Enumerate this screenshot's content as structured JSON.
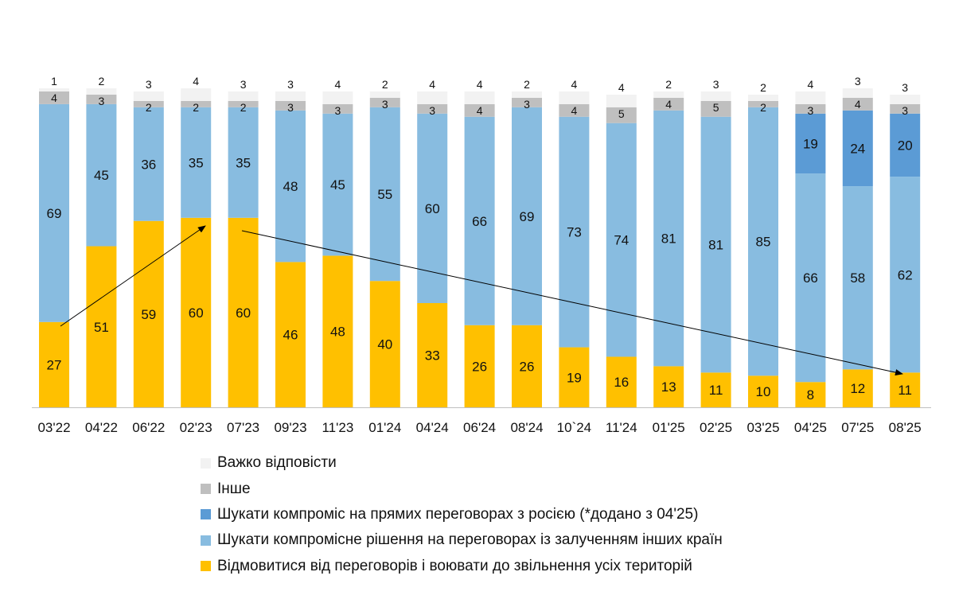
{
  "chart_data": {
    "type": "bar",
    "stacked": true,
    "categories": [
      "03'22",
      "04'22",
      "06'22",
      "02'23",
      "07'23",
      "09'23",
      "11'23",
      "01'24",
      "04'24",
      "06'24",
      "08'24",
      "10`24",
      "11'24",
      "01'25",
      "02'25",
      "03'25",
      "04'25",
      "07'25",
      "08'25"
    ],
    "series": [
      {
        "name": "Відмовитися від переговорів і воювати до звільнення усіх територій",
        "color": "#FFC000",
        "values": [
          27,
          51,
          59,
          60,
          60,
          46,
          48,
          40,
          33,
          26,
          26,
          19,
          16,
          13,
          11,
          10,
          8,
          12,
          11
        ]
      },
      {
        "name": "Шукати компромісне рішення на переговорах із залученням інших країн",
        "color": "#88BCE0",
        "values": [
          69,
          45,
          36,
          35,
          35,
          48,
          45,
          55,
          60,
          66,
          69,
          73,
          74,
          81,
          81,
          85,
          66,
          58,
          62
        ]
      },
      {
        "name": "Шукати компроміс на прямих переговорах з росією (*додано з 04'25)",
        "color": "#5B9BD5",
        "values": [
          null,
          null,
          null,
          null,
          null,
          null,
          null,
          null,
          null,
          null,
          null,
          null,
          null,
          null,
          null,
          null,
          19,
          24,
          20
        ]
      },
      {
        "name": "Інше",
        "color": "#BFBFBF",
        "values": [
          4,
          3,
          2,
          2,
          2,
          3,
          3,
          3,
          3,
          4,
          3,
          4,
          5,
          4,
          5,
          2,
          3,
          4,
          3
        ]
      },
      {
        "name": "Важко відповісти",
        "color": "#F2F2F2",
        "values": [
          1,
          2,
          3,
          4,
          3,
          3,
          4,
          2,
          4,
          4,
          2,
          4,
          4,
          2,
          3,
          2,
          4,
          3,
          3
        ]
      }
    ],
    "ylim": [
      0,
      100
    ],
    "grid": false,
    "legend_position": "bottom",
    "annotations": [
      "arrow: rising trend 03'22 → 02'23",
      "arrow: falling trend 07'23 → 08'25"
    ]
  }
}
